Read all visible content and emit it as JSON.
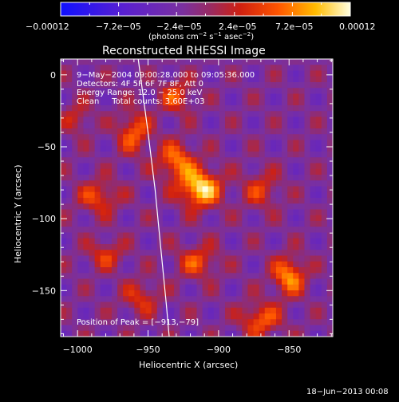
{
  "colorbar": {
    "tick_labels": [
      "−0.00012",
      "−7.2e−05",
      "−2.4e−05",
      "2.4e−05",
      "7.2e−05",
      "0.00012"
    ],
    "units_prefix": "(photons cm",
    "units_exp1": "−2",
    "units_mid": " s",
    "units_exp2": "−1",
    "units_mid2": " asec",
    "units_exp3": "−2",
    "units_suffix": ")"
  },
  "chart_data": {
    "type": "heatmap",
    "title": "Reconstructed RHESSI Image",
    "xlabel": "Heliocentric X (arcsec)",
    "ylabel": "Heliocentric Y (arcsec)",
    "xlim": [
      -1012,
      -819
    ],
    "ylim": [
      -182,
      11
    ],
    "x_ticks": [
      -1000,
      -950,
      -900,
      -850
    ],
    "y_ticks": [
      0,
      -50,
      -100,
      -150
    ],
    "x_tick_labels": [
      "−1000",
      "−950",
      "−900",
      "−850"
    ],
    "y_tick_labels": [
      "0",
      "−50",
      "−100",
      "−150"
    ],
    "colorbar_range": [
      -0.00012,
      0.00012
    ],
    "peak": {
      "x": -913,
      "y": -79,
      "value": 0.00012
    },
    "sources": [
      {
        "x": -913,
        "y": -79,
        "value": 0.00012,
        "sx": 10,
        "sy": 9
      },
      {
        "x": -930,
        "y": -60,
        "value": 8e-05,
        "sx": 9,
        "sy": 9
      },
      {
        "x": -960,
        "y": -40,
        "value": 7e-05,
        "sx": 8,
        "sy": 10
      },
      {
        "x": -985,
        "y": -85,
        "value": 6e-05,
        "sx": 10,
        "sy": 8
      },
      {
        "x": -850,
        "y": -140,
        "value": 9e-05,
        "sx": 8,
        "sy": 9
      },
      {
        "x": -870,
        "y": -170,
        "value": 7e-05,
        "sx": 10,
        "sy": 8
      },
      {
        "x": -980,
        "y": -125,
        "value": 5e-05,
        "sx": 9,
        "sy": 7
      },
      {
        "x": -915,
        "y": -130,
        "value": 6e-05,
        "sx": 10,
        "sy": 8
      },
      {
        "x": -930,
        "y": -15,
        "value": 6e-05,
        "sx": 8,
        "sy": 8
      },
      {
        "x": -870,
        "y": -80,
        "value": 5e-05,
        "sx": 9,
        "sy": 9
      },
      {
        "x": -955,
        "y": -155,
        "value": 5e-05,
        "sx": 9,
        "sy": 8
      },
      {
        "x": -1000,
        "y": -30,
        "value": 4e-05,
        "sx": 7,
        "sy": 8
      }
    ],
    "limb": [
      {
        "x": -957,
        "y": 11
      },
      {
        "x": -950,
        "y": -40
      },
      {
        "x": -945,
        "y": -80
      },
      {
        "x": -941,
        "y": -120
      },
      {
        "x": -937,
        "y": -160
      },
      {
        "x": -935,
        "y": -182
      }
    ]
  },
  "info": {
    "line1": "9−May−2004 09:00:28.000 to 09:05:36.000",
    "line2": "Detectors: 4F 5F 6F 7F 8F, Att 0",
    "line3": "Energy Range: 12.0 − 25.0 keV",
    "line4": "Clean     Total counts: 3.60E+03",
    "peak_text": "Position of Peak = [−913,−79]"
  },
  "footer": {
    "date": "18−Jun−2013 00:08"
  }
}
